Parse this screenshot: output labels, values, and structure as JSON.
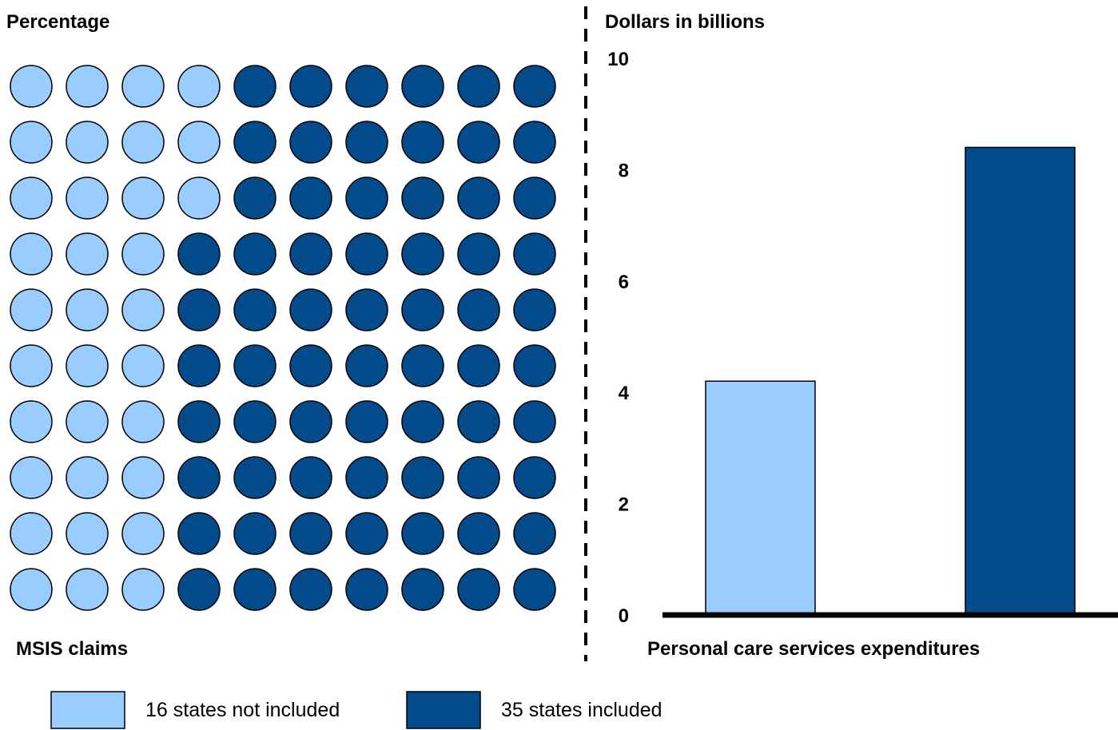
{
  "colors": {
    "not_included": "#99ccff",
    "included": "#044b8c",
    "outline": "#000000"
  },
  "chart_data": [
    {
      "type": "waffle",
      "ylabel": "Percentage",
      "xlabel": "MSIS claims",
      "grid": {
        "rows": 10,
        "cols": 10
      },
      "series": [
        {
          "name": "16 states not included",
          "value": 33
        },
        {
          "name": "35 states included",
          "value": 67
        }
      ]
    },
    {
      "type": "bar",
      "ylabel": "Dollars in billions",
      "xlabel": "Personal care services expenditures",
      "ylim": [
        0,
        10
      ],
      "yticks": [
        "0",
        "2",
        "4",
        "6",
        "8",
        "10"
      ],
      "grid": false,
      "categories": [
        "16 states not included",
        "35 states included"
      ],
      "values": [
        4.2,
        8.4
      ]
    }
  ],
  "legend": {
    "items": [
      {
        "label": "16 states not included",
        "color_key": "not_included"
      },
      {
        "label": "35 states included",
        "color_key": "included"
      }
    ]
  }
}
